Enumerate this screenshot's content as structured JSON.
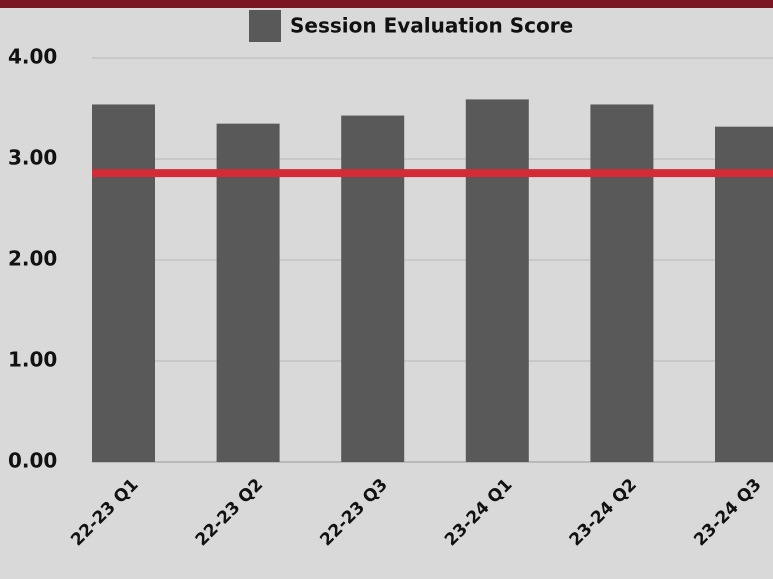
{
  "chart_data": {
    "type": "bar",
    "categories": [
      "22-23 Q1",
      "22-23 Q2",
      "22-23 Q3",
      "23-24 Q1",
      "23-24 Q2",
      "23-24 Q3"
    ],
    "series": [
      {
        "name": "Session Evaluation Score",
        "color": "#595959",
        "values": [
          3.54,
          3.35,
          3.43,
          3.59,
          3.54,
          3.32
        ]
      }
    ],
    "reference_line": {
      "value": 2.86,
      "color": "#d42b36"
    },
    "ylim": [
      0,
      4
    ],
    "yticks": [
      {
        "value": 0,
        "label": "0.00"
      },
      {
        "value": 1,
        "label": "1.00"
      },
      {
        "value": 2,
        "label": "2.00"
      },
      {
        "value": 3,
        "label": "3.00"
      },
      {
        "value": 4,
        "label": "4.00"
      }
    ],
    "grid": true,
    "legend": "top"
  }
}
